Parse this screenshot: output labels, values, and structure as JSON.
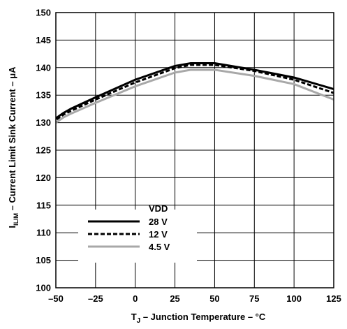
{
  "chart_data": {
    "type": "line",
    "xlabel_parts": [
      "T",
      "J",
      " – Junction Temperature – °C"
    ],
    "ylabel_parts": [
      "I",
      "ILIM",
      " – Current Limit Sink Current – μA"
    ],
    "xlim": [
      -50,
      125
    ],
    "ylim": [
      100,
      150
    ],
    "x_ticks": [
      -50,
      -25,
      0,
      25,
      50,
      75,
      100,
      125
    ],
    "x_tick_labels": [
      "–50",
      "–25",
      "0",
      "25",
      "50",
      "75",
      "100",
      "125"
    ],
    "y_ticks": [
      100,
      105,
      110,
      115,
      120,
      125,
      130,
      135,
      140,
      145,
      150
    ],
    "grid": true,
    "legend": {
      "title": "VDD",
      "placement": "bottom-left"
    },
    "series": [
      {
        "name": "28 V",
        "color": "#000000",
        "style": "solid",
        "x": [
          -55,
          -52,
          -50,
          -45,
          -40,
          -25,
          0,
          25,
          35,
          50,
          75,
          100,
          125
        ],
        "y": [
          127.8,
          129.8,
          130.8,
          131.8,
          132.6,
          134.6,
          137.8,
          140.3,
          140.8,
          140.8,
          139.6,
          138.2,
          136.1
        ]
      },
      {
        "name": "12 V",
        "color": "#000000",
        "style": "dashed",
        "x": [
          -55,
          -52,
          -50,
          -45,
          -40,
          -25,
          0,
          25,
          35,
          50,
          75,
          100,
          125
        ],
        "y": [
          127.6,
          129.6,
          130.5,
          131.5,
          132.2,
          134.2,
          137.3,
          139.9,
          140.5,
          140.5,
          139.4,
          137.8,
          135.4
        ]
      },
      {
        "name": "4.5 V",
        "color": "#a8a8a8",
        "style": "solid",
        "x": [
          -55,
          -52,
          -50,
          -45,
          -40,
          -25,
          0,
          25,
          35,
          50,
          75,
          100,
          125
        ],
        "y": [
          127.2,
          129.2,
          130.0,
          131.0,
          131.7,
          133.6,
          136.6,
          139.1,
          139.6,
          139.6,
          138.5,
          137.0,
          134.2
        ]
      }
    ]
  }
}
